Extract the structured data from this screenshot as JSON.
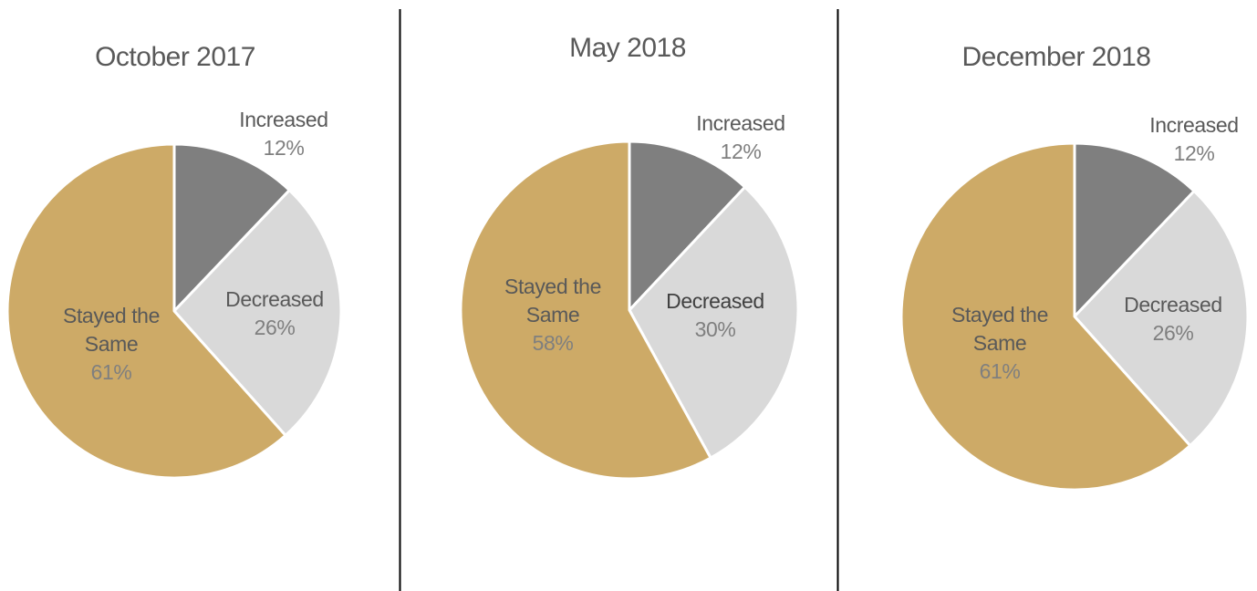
{
  "chart_data": [
    {
      "type": "pie",
      "title": "October 2017",
      "categories": [
        "Increased",
        "Decreased",
        "Stayed the Same"
      ],
      "values": [
        12,
        26,
        61
      ],
      "value_labels": [
        "12%",
        "26%",
        "61%"
      ],
      "colors": [
        "#7f7f7f",
        "#d9d9d9",
        "#cdaa67"
      ]
    },
    {
      "type": "pie",
      "title": "May 2018",
      "categories": [
        "Increased",
        "Decreased",
        "Stayed the Same"
      ],
      "values": [
        12,
        30,
        58
      ],
      "value_labels": [
        "12%",
        "30%",
        "58%"
      ],
      "colors": [
        "#7f7f7f",
        "#d9d9d9",
        "#cdaa67"
      ]
    },
    {
      "type": "pie",
      "title": "December 2018",
      "categories": [
        "Increased",
        "Decreased",
        "Stayed the Same"
      ],
      "values": [
        12,
        26,
        61
      ],
      "value_labels": [
        "12%",
        "26%",
        "61%"
      ],
      "colors": [
        "#7f7f7f",
        "#d9d9d9",
        "#cdaa67"
      ]
    }
  ]
}
